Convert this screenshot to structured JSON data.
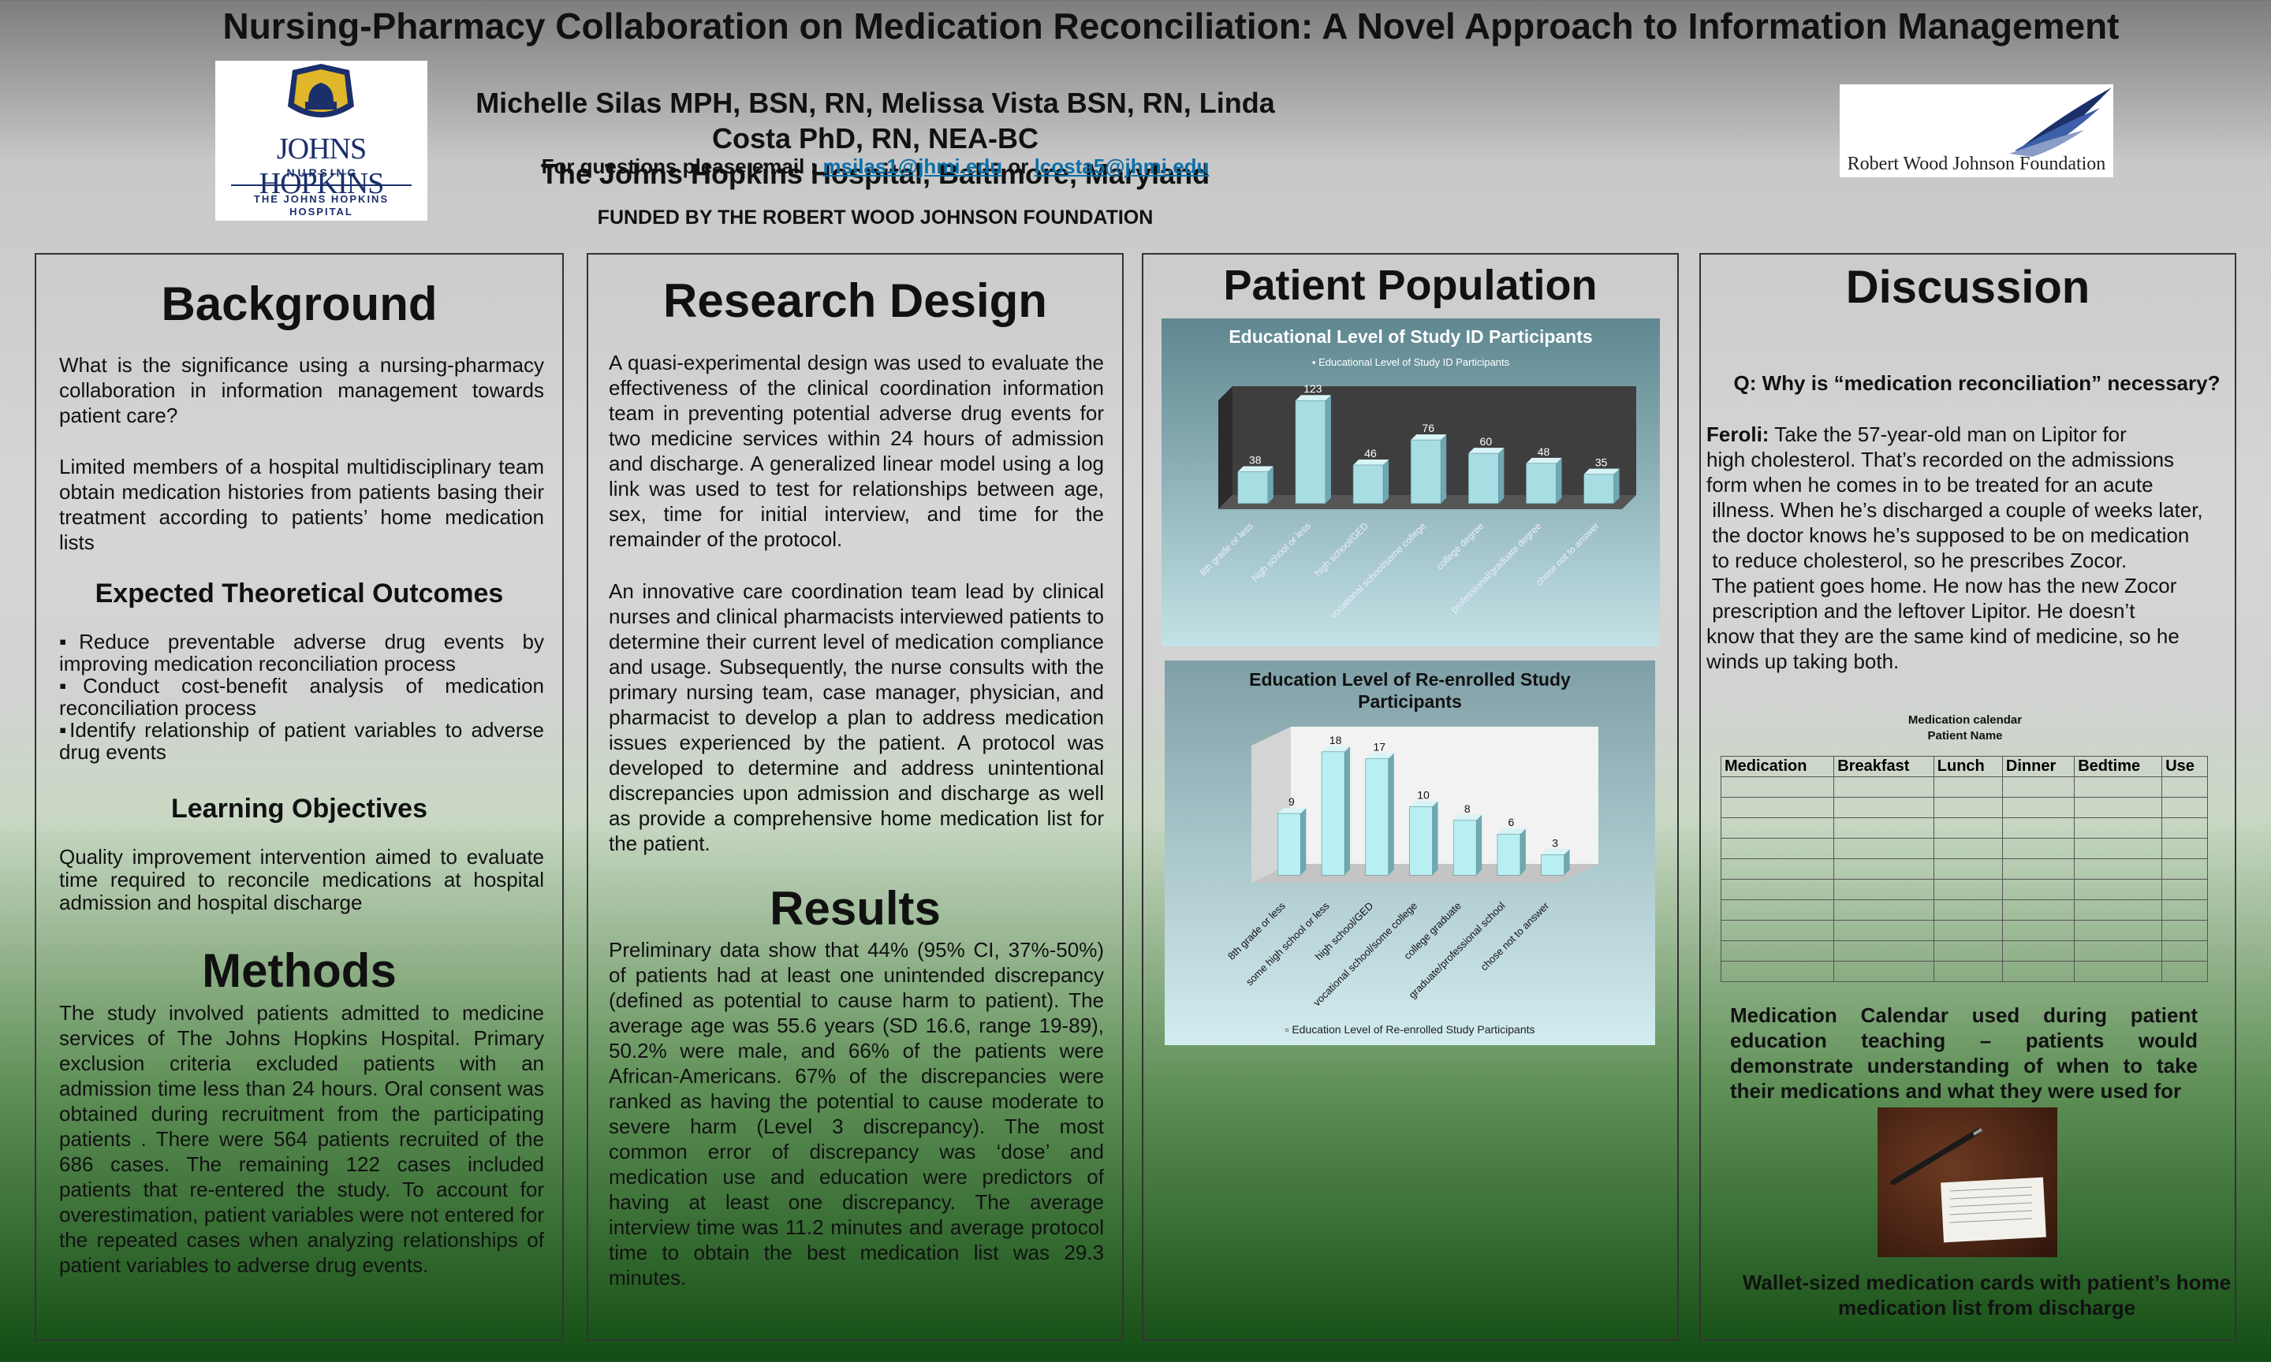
{
  "header": {
    "title": "Nursing-Pharmacy Collaboration on Medication Reconciliation:  A Novel Approach to Information Management",
    "authors": "Michelle Silas  MPH, BSN, RN, Melissa Vista BSN, RN, Linda Costa PhD, RN, NEA-BC",
    "institution": "The Johns Hopkins Hospital, Baltimore, Maryland",
    "email_prefix": "For questions please email : ",
    "email1": "msilas1@jhmi.edu",
    "email_or": "  or ",
    "email2": "lcosta5@jhmi.edu",
    "funded": "FUNDED BY THE ROBERT WOOD JOHNSON FOUNDATION"
  },
  "logos": {
    "jh_line1": "JOHNS HOPKINS",
    "jh_line2": "N U R S I N G",
    "jh_line3": "THE JOHNS HOPKINS",
    "jh_line4": "HOSPITAL",
    "rwj": "Robert Wood Johnson Foundation",
    "colors": {
      "navy": "#1b2f6b",
      "gold": "#e0b72a",
      "blue": "#3d5ea8"
    }
  },
  "background": {
    "heading": "Background",
    "p1": "What is the significance using a nursing-pharmacy collaboration in information management towards patient care?",
    "p2": "Limited members of a hospital multidisciplinary team obtain medication histories from patients basing their treatment according to patients’ home medication lists",
    "outcomes_heading": "Expected Theoretical Outcomes",
    "outcomes": [
      "▪Reduce preventable adverse drug events by improving medication reconciliation process",
      "▪Conduct cost-benefit analysis of medication reconciliation process",
      "▪Identify relationship of patient variables to adverse drug events"
    ],
    "objectives_heading": "Learning Objectives",
    "objectives": "Quality improvement intervention aimed to evaluate time required to reconcile medications at hospital admission and hospital  discharge"
  },
  "methods": {
    "heading": "Methods",
    "text": "The study involved patients admitted to medicine services of The Johns Hopkins Hospital. Primary exclusion criteria excluded patients with an admission time less than 24 hours. Oral consent was obtained during recruitment from the participating patients .  There were 564 patients recruited of the 686 cases. The remaining 122 cases included patients that re-entered the study. To account for overestimation, patient variables were not entered for the repeated cases when analyzing relationships of patient variables to adverse drug events."
  },
  "research": {
    "heading": "Research Design",
    "p1": "A quasi-experimental design was used to evaluate the effectiveness of the clinical coordination information team in preventing potential adverse drug events for two medicine services within 24 hours of admission and discharge. A generalized linear model using a log link was used to test for relationships between age, sex, time for initial interview, and time for the remainder of the protocol.",
    "p2": "An innovative care coordination team lead by clinical nurses and clinical pharmacists interviewed patients to determine their current level of medication compliance and usage. Subsequently, the nurse consults with the primary nursing team, case manager, physician, and pharmacist to develop a plan to address medication issues experienced by the patient. A protocol was developed to determine and address unintentional discrepancies upon admission and discharge as well as provide a comprehensive home medication list for the patient."
  },
  "results": {
    "heading": "Results",
    "text": "Preliminary data show that 44% (95% CI, 37%-50%) of patients had at least one unintended discrepancy (defined as potential to cause harm to patient). The average age was 55.6 years (SD 16.6, range 19-89), 50.2% were male, and 66% of the patients were African-Americans. 67% of the discrepancies were ranked as having the potential to cause moderate to severe harm (Level 3 discrepancy). The most common error of discrepancy was ‘dose’ and medication use and education were predictors of having at least one discrepancy. The average interview time was 11.2 minutes and average protocol time to obtain the best medication list was 29.3 minutes."
  },
  "population": {
    "heading": "Patient Population"
  },
  "chart_data": [
    {
      "type": "bar",
      "title": "Educational Level of Study ID Participants",
      "legend": "Educational Level of Study ID Participants",
      "legend_position": "top",
      "categories": [
        "8th grade or less",
        "high school or less",
        "high school/GED",
        "vocational school/some college",
        "college degree",
        "professional/graduate degree",
        "chose not to answer"
      ],
      "series": [
        {
          "name": "Educational Level of Study ID Participants",
          "values": [
            38,
            123,
            46,
            76,
            60,
            48,
            35
          ]
        }
      ],
      "ylim": [
        0,
        130
      ],
      "grid": false,
      "bar_color": "#a8dde3"
    },
    {
      "type": "bar",
      "title": "Education Level of Re-enrolled Study Participants",
      "legend": "Education Level of Re-enrolled Study Participants",
      "legend_position": "bottom",
      "categories": [
        "8th grade or less",
        "some high school or less",
        "high school/GED",
        "vocational school/some college",
        "college graduate",
        "graduate/professional school",
        "chose not to answer"
      ],
      "series": [
        {
          "name": "Education Level of Re-enrolled Study Participants",
          "values": [
            9,
            18,
            17,
            10,
            8,
            6,
            3
          ]
        }
      ],
      "ylim": [
        0,
        20
      ],
      "grid": false,
      "bar_color": "#b9eef2"
    }
  ],
  "discussion": {
    "heading": "Discussion",
    "question": "Q: Why is “medication reconciliation” necessary?",
    "speaker": "Feroli:",
    "lines": [
      " Take the 57-year-old man on Lipitor for",
      "high cholesterol. That’s recorded on the admissions",
      "form when he comes in to be treated for an acute",
      " illness. When he’s discharged a couple of weeks later,",
      " the doctor knows he’s supposed to be on medication",
      " to reduce cholesterol, so he prescribes Zocor.",
      " The patient goes home. He now has the new Zocor",
      " prescription and the leftover Lipitor. He doesn’t",
      "know that they are the same kind of medicine, so he",
      "winds up taking both."
    ],
    "calendar_title": "Medication calendar",
    "calendar_subtitle": "Patient Name",
    "calendar_columns": [
      "Medication",
      "Breakfast",
      "Lunch",
      "Dinner",
      "Bedtime",
      "Use"
    ],
    "calendar_caption": "Medication Calendar used during patient education teaching – patients would demonstrate understanding of when to take their medications and what they were used for",
    "wallet_caption": "Wallet-sized medication cards with patient’s home medication list from discharge"
  }
}
